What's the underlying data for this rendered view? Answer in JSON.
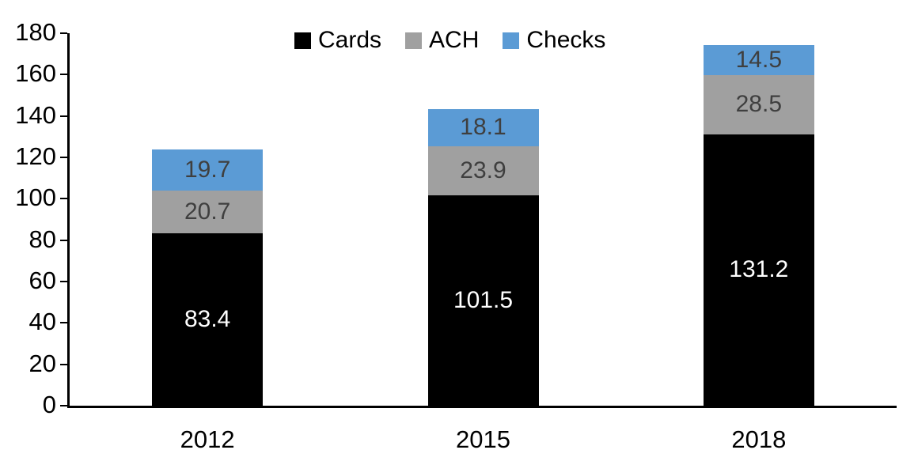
{
  "chart_data": {
    "type": "bar",
    "stacked": true,
    "title": "",
    "xlabel": "",
    "ylabel": "",
    "categories": [
      "2012",
      "2015",
      "2018"
    ],
    "series": [
      {
        "name": "Cards",
        "color": "#000000",
        "label_color": "#ffffff",
        "values": [
          83.4,
          101.5,
          131.2
        ]
      },
      {
        "name": "ACH",
        "color": "#a0a0a0",
        "label_color": "#3f3f3f",
        "values": [
          20.7,
          23.9,
          28.5
        ]
      },
      {
        "name": "Checks",
        "color": "#5b9bd5",
        "label_color": "#3f3f3f",
        "values": [
          19.7,
          18.1,
          14.5
        ]
      }
    ],
    "ylim": [
      0,
      180
    ],
    "ytick_step": 20,
    "yticks": [
      0,
      20,
      40,
      60,
      80,
      100,
      120,
      140,
      160,
      180
    ],
    "legend_position": "top-center",
    "grid": false,
    "axis_color": "#000000",
    "background_color": "#ffffff"
  }
}
